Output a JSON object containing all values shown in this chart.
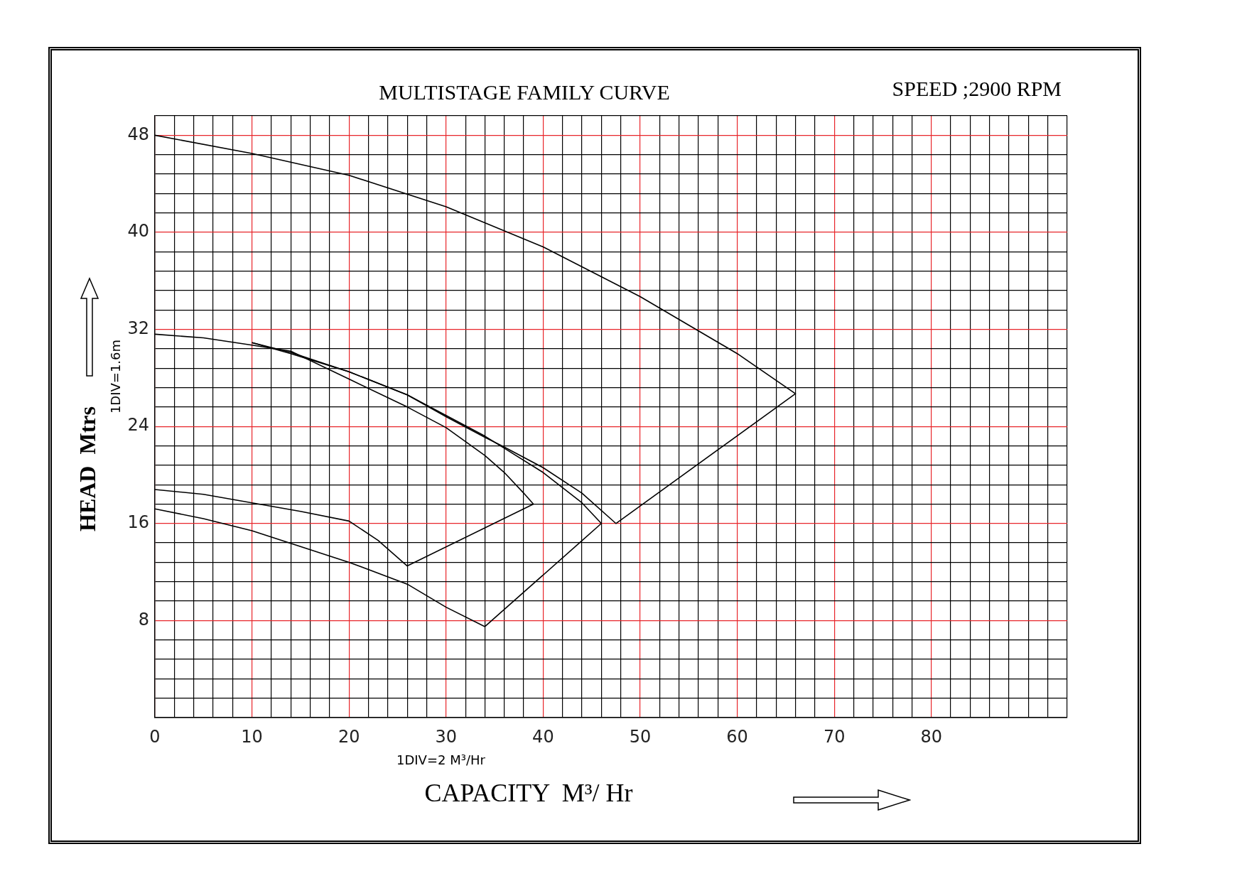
{
  "chart_data": {
    "type": "line",
    "title": "MULTISTAGE FAMILY CURVE",
    "subtitle": "SPEED ;2900 RPM",
    "xlabel": "CAPACITY  M³/ Hr",
    "ylabel": "HEAD  Mtrs",
    "annotations": [
      "1DIV=1.6m",
      "1DIV=2 M³/Hr"
    ],
    "xlim": [
      0,
      94
    ],
    "ylim": [
      0,
      49.6
    ],
    "xticks": [
      0,
      {
        "value": 2,
        "label": null
      },
      {
        "value": 4,
        "label": null
      },
      {
        "value": 6,
        "label": null
      },
      {
        "value": 8,
        "label": null
      },
      10,
      {
        "value": 12,
        "label": null
      },
      {
        "value": 14,
        "label": null
      },
      {
        "value": 16,
        "label": null
      },
      {
        "value": 18,
        "label": null
      },
      20,
      {
        "value": 22,
        "label": null
      },
      {
        "value": 24,
        "label": null
      },
      {
        "value": 26,
        "label": null
      },
      {
        "value": 28,
        "label": null
      },
      30,
      {
        "value": 32,
        "label": null
      },
      {
        "value": 34,
        "label": null
      },
      {
        "value": 36,
        "label": null
      },
      {
        "value": 38,
        "label": null
      },
      40,
      {
        "value": 42,
        "label": null
      },
      {
        "value": 44,
        "label": null
      },
      {
        "value": 46,
        "label": null
      },
      {
        "value": 48,
        "label": null
      },
      50,
      {
        "value": 52,
        "label": null
      },
      {
        "value": 54,
        "label": null
      },
      {
        "value": 56,
        "label": null
      },
      {
        "value": 58,
        "label": null
      },
      60,
      {
        "value": 62,
        "label": null
      },
      {
        "value": 64,
        "label": null
      },
      {
        "value": 66,
        "label": null
      },
      {
        "value": 68,
        "label": null
      },
      70,
      {
        "value": 72,
        "label": null
      },
      {
        "value": 74,
        "label": null
      },
      {
        "value": 76,
        "label": null
      },
      {
        "value": 78,
        "label": null
      },
      80,
      {
        "value": 82,
        "label": null
      },
      {
        "value": 84,
        "label": null
      },
      {
        "value": 86,
        "label": null
      },
      {
        "value": 88,
        "label": null
      },
      {
        "value": 90,
        "label": null
      },
      {
        "value": 92,
        "label": null
      },
      {
        "value": 94,
        "label": null
      }
    ],
    "yticks": [
      {
        "value": 0,
        "label": null
      },
      {
        "value": 1.6,
        "label": null
      },
      {
        "value": 3.2,
        "label": null
      },
      {
        "value": 4.8,
        "label": null
      },
      {
        "value": 6.4,
        "label": null
      },
      8,
      {
        "value": 9.6,
        "label": null
      },
      {
        "value": 11.2,
        "label": null
      },
      {
        "value": 12.8,
        "label": null
      },
      {
        "value": 14.4,
        "label": null
      },
      16,
      {
        "value": 17.6,
        "label": null
      },
      {
        "value": 19.2,
        "label": null
      },
      {
        "value": 20.8,
        "label": null
      },
      {
        "value": 22.4,
        "label": null
      },
      24,
      {
        "value": 25.6,
        "label": null
      },
      {
        "value": 27.2,
        "label": null
      },
      {
        "value": 28.8,
        "label": null
      },
      {
        "value": 30.4,
        "label": null
      },
      32,
      {
        "value": 33.6,
        "label": null
      },
      {
        "value": 35.2,
        "label": null
      },
      {
        "value": 36.8,
        "label": null
      },
      {
        "value": 38.4,
        "label": null
      },
      40,
      {
        "value": 41.6,
        "label": null
      },
      {
        "value": 43.2,
        "label": null
      },
      {
        "value": 44.8,
        "label": null
      },
      {
        "value": 46.4,
        "label": null
      },
      48,
      {
        "value": 49.6,
        "label": null
      }
    ],
    "grid": true,
    "marker": "none",
    "line_style": "solid",
    "series": [
      {
        "color": "#000000",
        "x": [
          0,
          10,
          20,
          30,
          40,
          50,
          60,
          66,
          47.5,
          44,
          40,
          36,
          34,
          30,
          26,
          20,
          14,
          10
        ],
        "values": [
          48,
          46.5,
          44.7,
          42.1,
          38.8,
          34.7,
          30,
          26.7,
          16,
          18.5,
          20.6,
          22.3,
          23.1,
          24.8,
          26.6,
          28.5,
          30,
          30.9
        ]
      },
      {
        "color": "#000000",
        "x": [
          0,
          5,
          10,
          14,
          20,
          26,
          30,
          34,
          36,
          38,
          39,
          26,
          23,
          20,
          15,
          10,
          5,
          0
        ],
        "values": [
          31.6,
          31.3,
          30.7,
          30.2,
          27.9,
          25.6,
          23.9,
          21.6,
          20.2,
          18.5,
          17.6,
          12.5,
          14.6,
          16.2,
          17,
          17.7,
          18.4,
          18.8
        ]
      },
      {
        "color": "#000000",
        "x": [
          10,
          14,
          20,
          26,
          30,
          34,
          36,
          40,
          44,
          46,
          34,
          30,
          26,
          20,
          10,
          5,
          0
        ],
        "values": [
          30.9,
          30.1,
          28.5,
          26.6,
          24.9,
          23.2,
          22.2,
          20.2,
          17.7,
          16,
          7.5,
          9.1,
          11,
          12.8,
          15.4,
          16.4,
          17.2
        ]
      }
    ]
  }
}
